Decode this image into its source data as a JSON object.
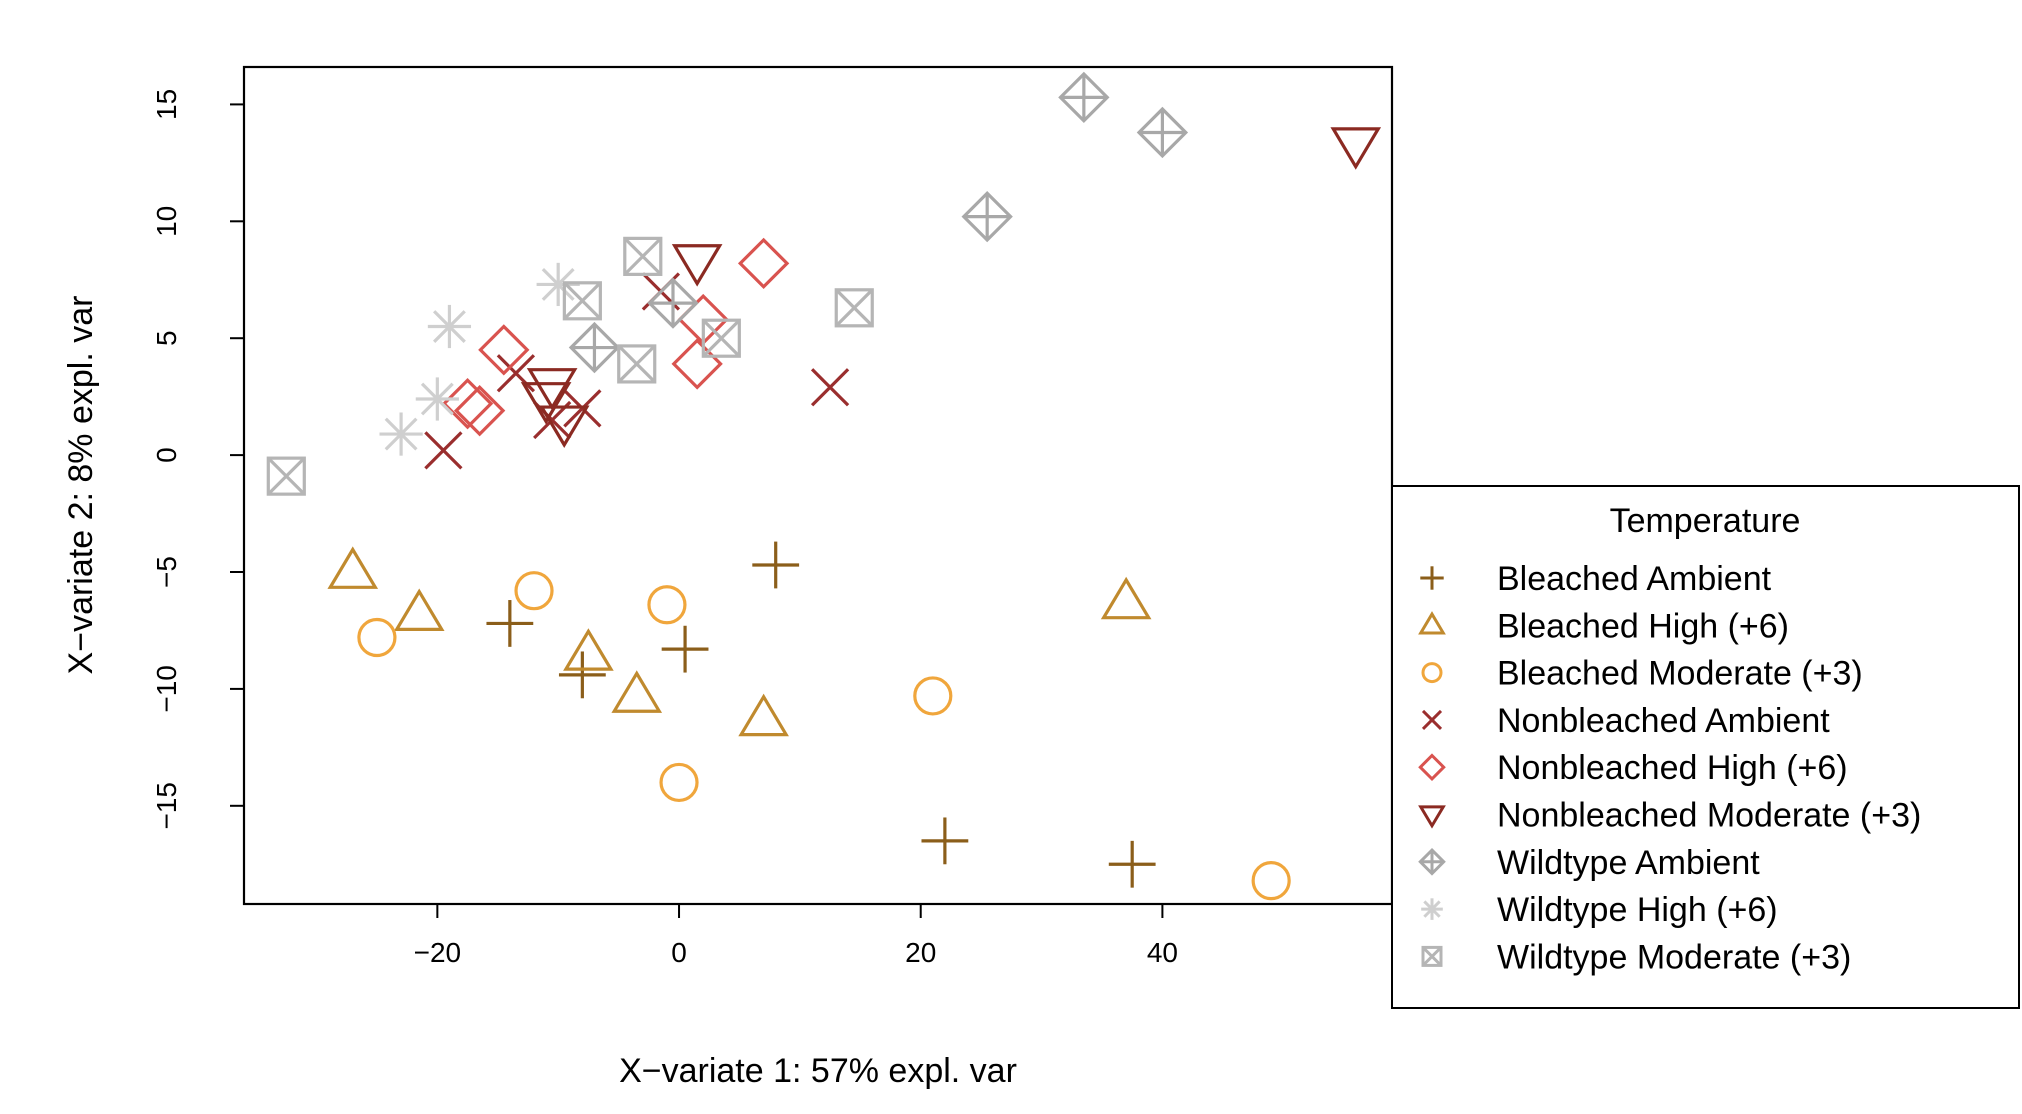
{
  "chart_data": {
    "type": "scatter",
    "xlabel": "X−variate 1: 57% expl. var",
    "ylabel": "X−variate 2: 8% expl. var",
    "xlim": [
      -36,
      59
    ],
    "ylim": [
      -19.2,
      16.6
    ],
    "x_ticks": [
      {
        "value": -20,
        "label": "−20"
      },
      {
        "value": 0,
        "label": "0"
      },
      {
        "value": 20,
        "label": "20"
      },
      {
        "value": 40,
        "label": "40"
      }
    ],
    "y_ticks": [
      {
        "value": 15,
        "label": "15"
      },
      {
        "value": 10,
        "label": "10"
      },
      {
        "value": 5,
        "label": "5"
      },
      {
        "value": 0,
        "label": "0"
      },
      {
        "value": -5,
        "label": "−5"
      },
      {
        "value": -10,
        "label": "−10"
      },
      {
        "value": -15,
        "label": "−15"
      }
    ],
    "grid": false,
    "legend_title": "Temperature",
    "legend_position": "right",
    "series": [
      {
        "name": "Bleached Ambient",
        "marker": "plus",
        "color": "#8B5E1A",
        "points": [
          [
            -14,
            -7.2
          ],
          [
            -8,
            -9.4
          ],
          [
            0.5,
            -8.3
          ],
          [
            8,
            -4.7
          ],
          [
            22,
            -16.5
          ],
          [
            37.5,
            -17.5
          ]
        ]
      },
      {
        "name": "Bleached High (+6)",
        "marker": "triangle-up",
        "color": "#C08A2E",
        "points": [
          [
            -27,
            -5
          ],
          [
            -21.5,
            -6.8
          ],
          [
            -7.5,
            -8.5
          ],
          [
            -3.5,
            -10.3
          ],
          [
            7,
            -11.3
          ],
          [
            37,
            -6.3
          ]
        ]
      },
      {
        "name": "Bleached Moderate (+3)",
        "marker": "circle",
        "color": "#F0A63C",
        "points": [
          [
            -25,
            -7.8
          ],
          [
            -12,
            -5.8
          ],
          [
            -1,
            -6.4
          ],
          [
            0,
            -14
          ],
          [
            21,
            -10.3
          ],
          [
            49,
            -18.2
          ]
        ]
      },
      {
        "name": "Nonbleached Ambient",
        "marker": "cross",
        "color": "#9A2E2E",
        "points": [
          [
            -19.5,
            0.2
          ],
          [
            -13.5,
            3.5
          ],
          [
            -10.5,
            1.5
          ],
          [
            -8,
            2
          ],
          [
            -1.5,
            7
          ],
          [
            12.5,
            2.9
          ]
        ]
      },
      {
        "name": "Nonbleached High (+6)",
        "marker": "diamond",
        "color": "#D9534F",
        "points": [
          [
            -14.5,
            4.5
          ],
          [
            -17.5,
            2.2
          ],
          [
            -16.5,
            1.9
          ],
          [
            2,
            5.8
          ],
          [
            1.5,
            3.9
          ],
          [
            7,
            8.2
          ]
        ]
      },
      {
        "name": "Nonbleached Moderate (+3)",
        "marker": "triangle-down",
        "color": "#8B2A22",
        "points": [
          [
            -10.5,
            3
          ],
          [
            -11,
            2.4
          ],
          [
            -9.5,
            1.4
          ],
          [
            1.5,
            8.3
          ],
          [
            56,
            13.3
          ]
        ]
      },
      {
        "name": "Wildtype Ambient",
        "marker": "diamond-plus",
        "color": "#A8A8A8",
        "points": [
          [
            -7,
            4.6
          ],
          [
            -0.5,
            6.5
          ],
          [
            25.5,
            10.2
          ],
          [
            33.5,
            15.3
          ],
          [
            40,
            13.8
          ]
        ]
      },
      {
        "name": "Wildtype High (+6)",
        "marker": "asterisk",
        "color": "#CFCFCF",
        "points": [
          [
            -19,
            5.5
          ],
          [
            -20,
            2.4
          ],
          [
            -23,
            0.9
          ],
          [
            -10,
            7.3
          ]
        ]
      },
      {
        "name": "Wildtype Moderate (+3)",
        "marker": "square-x",
        "color": "#B5B5B5",
        "points": [
          [
            -32.5,
            -0.9
          ],
          [
            -8,
            6.6
          ],
          [
            -3,
            8.5
          ],
          [
            -3.5,
            3.9
          ],
          [
            3.5,
            5
          ],
          [
            14.5,
            6.3
          ]
        ]
      }
    ]
  }
}
